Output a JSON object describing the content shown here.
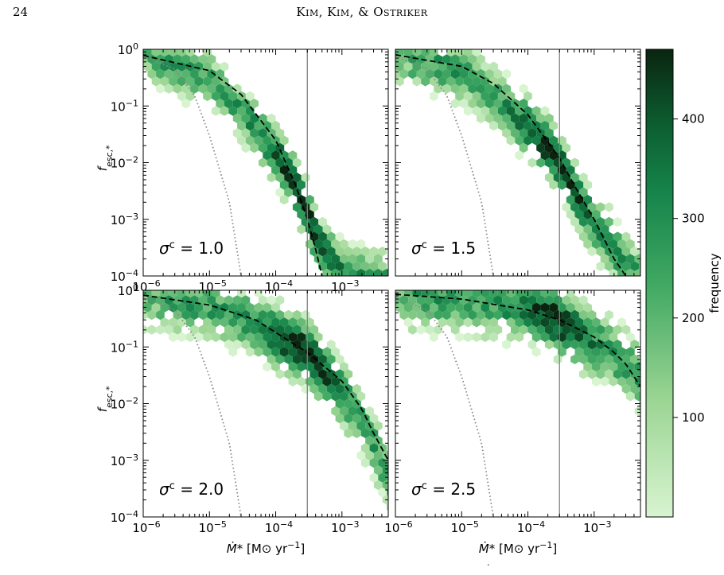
{
  "page": {
    "page_number": "24",
    "running_head": "Kim, Kim, & Ostriker",
    "caption_fragment": "·"
  },
  "colors": {
    "hex_light": "#d6f3cf",
    "hex_dark": "#0a2410",
    "fit_line": "#000000",
    "dotted_line": "#888888",
    "vertical_line": "#808080"
  },
  "chart_data": [
    {
      "type": "heatmap",
      "panel": "sigma-1.0",
      "annotation": "σ^c = 1.0",
      "x_scale": "log",
      "y_scale": "log",
      "xlim": [
        1e-06,
        0.005
      ],
      "ylim": [
        0.0001,
        1.0
      ],
      "x_tick_labels": [
        "10^-6",
        "10^-5",
        "10^-4",
        "10^-3"
      ],
      "y_tick_labels": [
        "10^0",
        "10^-1",
        "10^-2",
        "10^-3",
        "10^-4"
      ],
      "ylabel": "f_esc,*",
      "xlabel": "",
      "vertical_line_x": 0.0003,
      "density_ridge": {
        "x": [
          1e-06,
          1e-05,
          3e-05,
          0.0001,
          0.0002,
          0.0003,
          0.0005,
          0.001,
          0.002
        ],
        "y": [
          0.8,
          0.3,
          0.08,
          0.015,
          0.004,
          0.0012,
          0.0003,
          0.00012,
          0.0001
        ]
      },
      "dashed_curve": {
        "x": [
          1e-06,
          1e-05,
          3e-05,
          0.0001,
          0.0002,
          0.0003,
          0.0004,
          0.0005
        ],
        "y": [
          0.78,
          0.42,
          0.16,
          0.025,
          0.004,
          0.001,
          0.0003,
          0.0001
        ]
      },
      "dotted_curve": {
        "x": [
          1e-06,
          3e-06,
          6e-06,
          1e-05,
          2e-05,
          3e-05
        ],
        "y": [
          0.75,
          0.45,
          0.15,
          0.03,
          0.002,
          0.0001
        ]
      }
    },
    {
      "type": "heatmap",
      "panel": "sigma-1.5",
      "annotation": "σ^c = 1.5",
      "x_scale": "log",
      "y_scale": "log",
      "xlim": [
        1e-06,
        0.005
      ],
      "ylim": [
        0.0001,
        1.0
      ],
      "x_tick_labels": [],
      "y_tick_labels": [],
      "ylabel": "",
      "xlabel": "",
      "vertical_line_x": 0.0003,
      "density_ridge": {
        "x": [
          1e-06,
          1e-05,
          3e-05,
          0.0001,
          0.0002,
          0.0003,
          0.0005,
          0.001,
          0.002
        ],
        "y": [
          0.85,
          0.4,
          0.15,
          0.04,
          0.02,
          0.01,
          0.003,
          0.0008,
          0.0003
        ]
      },
      "dashed_curve": {
        "x": [
          1e-06,
          1e-05,
          3e-05,
          0.0001,
          0.0003,
          0.0005,
          0.001,
          0.002,
          0.003
        ],
        "y": [
          0.8,
          0.5,
          0.25,
          0.07,
          0.012,
          0.004,
          0.001,
          0.0002,
          0.0001
        ]
      },
      "dotted_curve": {
        "x": [
          1e-06,
          3e-06,
          6e-06,
          1e-05,
          2e-05,
          3e-05
        ],
        "y": [
          0.75,
          0.45,
          0.15,
          0.03,
          0.002,
          0.0001
        ]
      }
    },
    {
      "type": "heatmap",
      "panel": "sigma-2.0",
      "annotation": "σ^c = 2.0",
      "x_scale": "log",
      "y_scale": "log",
      "xlim": [
        1e-06,
        0.005
      ],
      "ylim": [
        0.0001,
        1.0
      ],
      "x_tick_labels": [
        "10^-6",
        "10^-5",
        "10^-4",
        "10^-3"
      ],
      "y_tick_labels": [
        "10^0",
        "10^-1",
        "10^-2",
        "10^-3",
        "10^-4"
      ],
      "ylabel": "f_esc,*",
      "xlabel": "Ṁ* [M⊙ yr^-1]",
      "vertical_line_x": 0.0003,
      "density_ridge": {
        "x": [
          1e-06,
          1e-05,
          5e-05,
          0.0001,
          0.0002,
          0.0003,
          0.0005,
          0.001,
          0.002,
          0.004
        ],
        "y": [
          0.8,
          0.55,
          0.25,
          0.16,
          0.1,
          0.08,
          0.04,
          0.015,
          0.005,
          0.001
        ]
      },
      "dashed_curve": {
        "x": [
          1e-06,
          1e-05,
          5e-05,
          0.0001,
          0.0003,
          0.001,
          0.002,
          0.003,
          0.005
        ],
        "y": [
          0.82,
          0.55,
          0.3,
          0.18,
          0.08,
          0.025,
          0.008,
          0.003,
          0.001
        ]
      },
      "dotted_curve": {
        "x": [
          1e-06,
          3e-06,
          6e-06,
          1e-05,
          2e-05,
          3e-05
        ],
        "y": [
          0.75,
          0.45,
          0.15,
          0.03,
          0.002,
          0.0001
        ]
      }
    },
    {
      "type": "heatmap",
      "panel": "sigma-2.5",
      "annotation": "σ^c = 2.5",
      "x_scale": "log",
      "y_scale": "log",
      "xlim": [
        1e-06,
        0.005
      ],
      "ylim": [
        0.0001,
        1.0
      ],
      "x_tick_labels": [
        "10^-6",
        "10^-5",
        "10^-4",
        "10^-3"
      ],
      "y_tick_labels": [],
      "ylabel": "",
      "xlabel": "Ṁ* [M⊙ yr^-1]",
      "vertical_line_x": 0.0003,
      "density_ridge": {
        "x": [
          1e-06,
          1e-05,
          5e-05,
          0.0001,
          0.0002,
          0.0003,
          0.0005,
          0.001,
          0.002,
          0.005
        ],
        "y": [
          0.85,
          0.7,
          0.55,
          0.45,
          0.35,
          0.28,
          0.2,
          0.12,
          0.07,
          0.03
        ]
      },
      "dashed_curve": {
        "x": [
          1e-06,
          1e-05,
          0.0001,
          0.0003,
          0.001,
          0.002,
          0.003,
          0.005
        ],
        "y": [
          0.85,
          0.7,
          0.45,
          0.3,
          0.15,
          0.08,
          0.05,
          0.02
        ]
      },
      "dotted_curve": {
        "x": [
          1e-06,
          3e-06,
          6e-06,
          1e-05,
          2e-05,
          3e-05
        ],
        "y": [
          0.75,
          0.45,
          0.15,
          0.03,
          0.002,
          0.0001
        ]
      }
    }
  ],
  "colorbar": {
    "label": "frequency",
    "range": [
      0,
      470
    ],
    "tick_values": [
      100,
      200,
      300,
      400
    ],
    "tick_labels": [
      "100",
      "200",
      "300",
      "400"
    ]
  }
}
